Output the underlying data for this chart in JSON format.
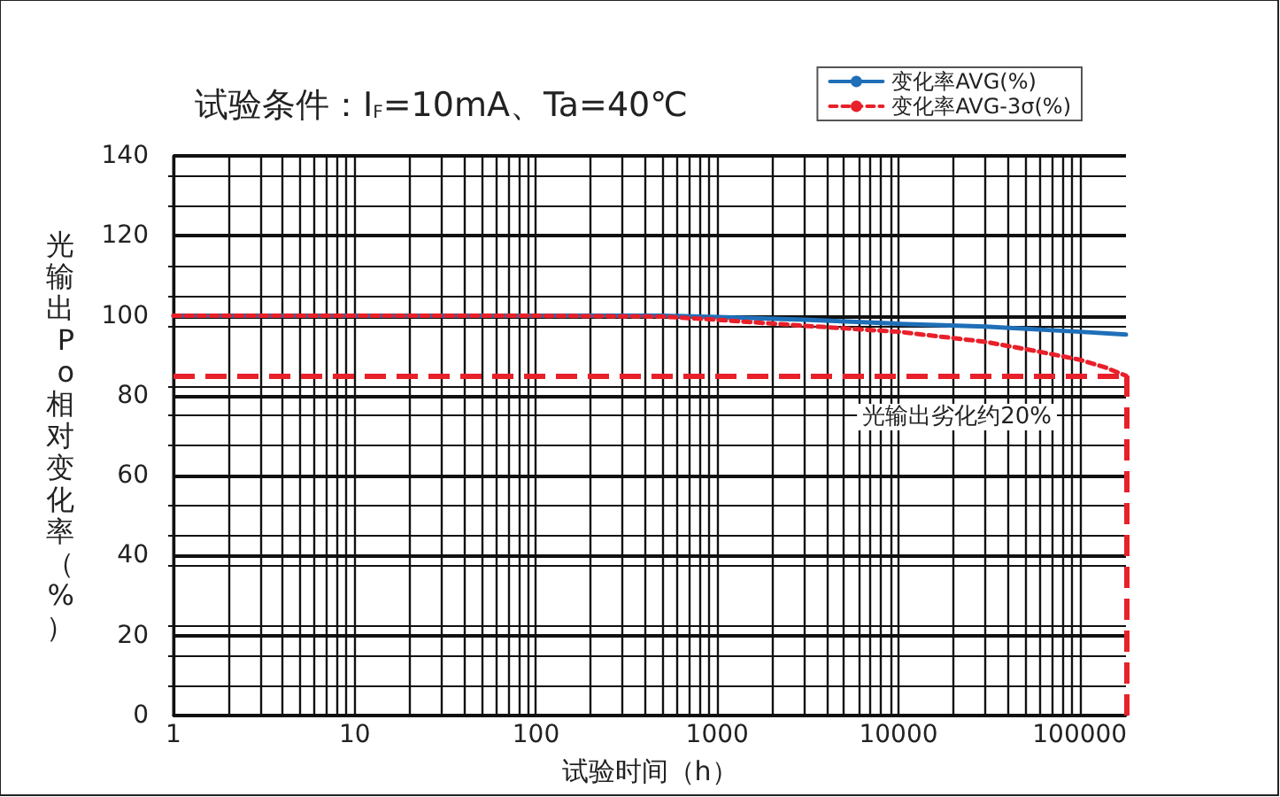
{
  "chart_data": {
    "type": "line",
    "title": "试验条件：I$_{F}$=10mA、Ta=40℃",
    "xlabel": "试验时间（h）",
    "ylabel": "光输出Po相对变化率（%）",
    "log": "x",
    "xlim": [
      1,
      180000
    ],
    "xticks": [
      1,
      10,
      100,
      1000,
      10000,
      100000
    ],
    "ylim": [
      0,
      140
    ],
    "yticks": [
      0,
      20,
      40,
      60,
      80,
      100,
      120,
      140
    ],
    "grid": true,
    "legend": "top right",
    "marker": "none",
    "series": [
      {
        "name": "变化率AVG(%)",
        "color": "#1f6fb8",
        "line_style": "solid",
        "x": [
          1,
          100,
          500,
          1000,
          3000,
          10000,
          30000,
          100000,
          180000
        ],
        "values": [
          100,
          100,
          100,
          99.7,
          99,
          98,
          97.3,
          96,
          95.3
        ]
      },
      {
        "name": "变化率AVG-3σ(%)",
        "color": "#e8202a",
        "line_style": "dotted",
        "x": [
          1,
          100,
          500,
          1000,
          3000,
          10000,
          30000,
          60000,
          100000,
          140000,
          180000
        ],
        "values": [
          100,
          100,
          99.8,
          99,
          97.5,
          96,
          93.5,
          91,
          89,
          87,
          85
        ]
      }
    ],
    "ref_lines": [
      {
        "axis": "y",
        "value": 85,
        "color": "#e8202a",
        "line_style": "dashed"
      },
      {
        "axis": "x",
        "value": 180000,
        "color": "#e8202a",
        "line_style": "dashed"
      }
    ],
    "annotations": [
      "光输出劣化约20%"
    ]
  }
}
